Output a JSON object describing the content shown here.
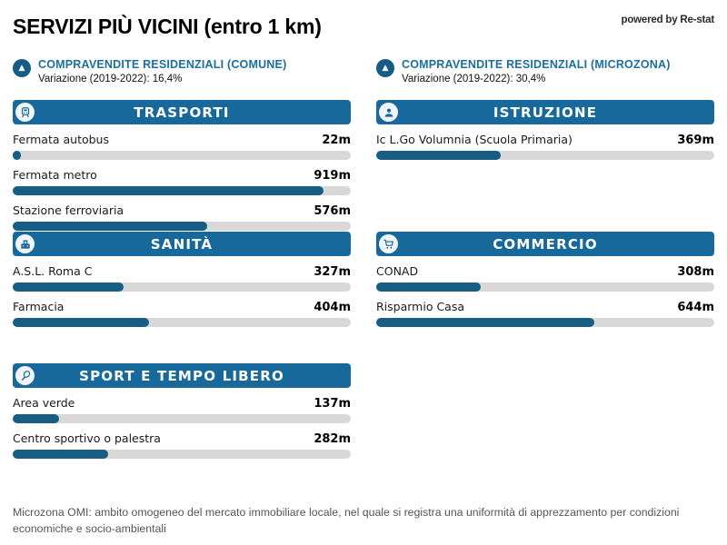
{
  "page": {
    "title": "SERVIZI PIÙ VICINI (entro 1 km)",
    "powered_by": "powered by Re-stat",
    "footer_note": "Microzona OMI: ambito omogeneo del mercato immobiliare locale, nel quale si registra una uniformità di apprezzamento per condizioni economiche e socio-ambientali"
  },
  "market_stats": [
    {
      "icon": "arrow-up-badge-icon",
      "arrow_glyph": "▲",
      "title": "COMPRAVENDITE RESIDENZIALI (COMUNE)",
      "subtitle": "Variazione (2019-2022): 16,4%"
    },
    {
      "icon": "arrow-up-badge-icon",
      "arrow_glyph": "▲",
      "title": "COMPRAVENDITE RESIDENZIALI (MICROZONA)",
      "subtitle": "Variazione (2019-2022): 30,4%"
    }
  ],
  "colors": {
    "section_header_blue": "#17699c",
    "bar_fill_blue": "#175d84",
    "bar_track_gray": "#d8d8d8",
    "stat_title_blue": "#1a6fa0",
    "badge_blue": "#175a83"
  },
  "chart_data": {
    "type": "bar",
    "orientation": "horizontal",
    "title": "SERVIZI PIÙ VICINI (entro 1 km)",
    "unit": "m",
    "axis_max": 1000,
    "sections": [
      {
        "title": "TRASPORTI",
        "icon": "train-icon",
        "items": [
          {
            "label": "Fermata autobus",
            "value": 22,
            "value_label": "22m"
          },
          {
            "label": "Fermata metro",
            "value": 919,
            "value_label": "919m"
          },
          {
            "label": "Stazione ferroviaria",
            "value": 576,
            "value_label": "576m"
          }
        ]
      },
      {
        "title": "ISTRUZIONE",
        "icon": "student-icon",
        "items": [
          {
            "label": "Ic L.Go Volumnia (Scuola Primaria)",
            "value": 369,
            "value_label": "369m"
          }
        ]
      },
      {
        "title": "SANITÀ",
        "icon": "hospital-icon",
        "items": [
          {
            "label": "A.S.L. Roma C",
            "value": 327,
            "value_label": "327m"
          },
          {
            "label": "Farmacia",
            "value": 404,
            "value_label": "404m"
          }
        ]
      },
      {
        "title": "COMMERCIO",
        "icon": "shopping-cart-icon",
        "items": [
          {
            "label": "CONAD",
            "value": 308,
            "value_label": "308m"
          },
          {
            "label": "Risparmio Casa",
            "value": 644,
            "value_label": "644m"
          }
        ]
      },
      {
        "title": "SPORT E TEMPO LIBERO",
        "icon": "tennis-racket-icon",
        "items": [
          {
            "label": "Area verde",
            "value": 137,
            "value_label": "137m"
          },
          {
            "label": "Centro sportivo o palestra",
            "value": 282,
            "value_label": "282m"
          }
        ]
      }
    ]
  }
}
